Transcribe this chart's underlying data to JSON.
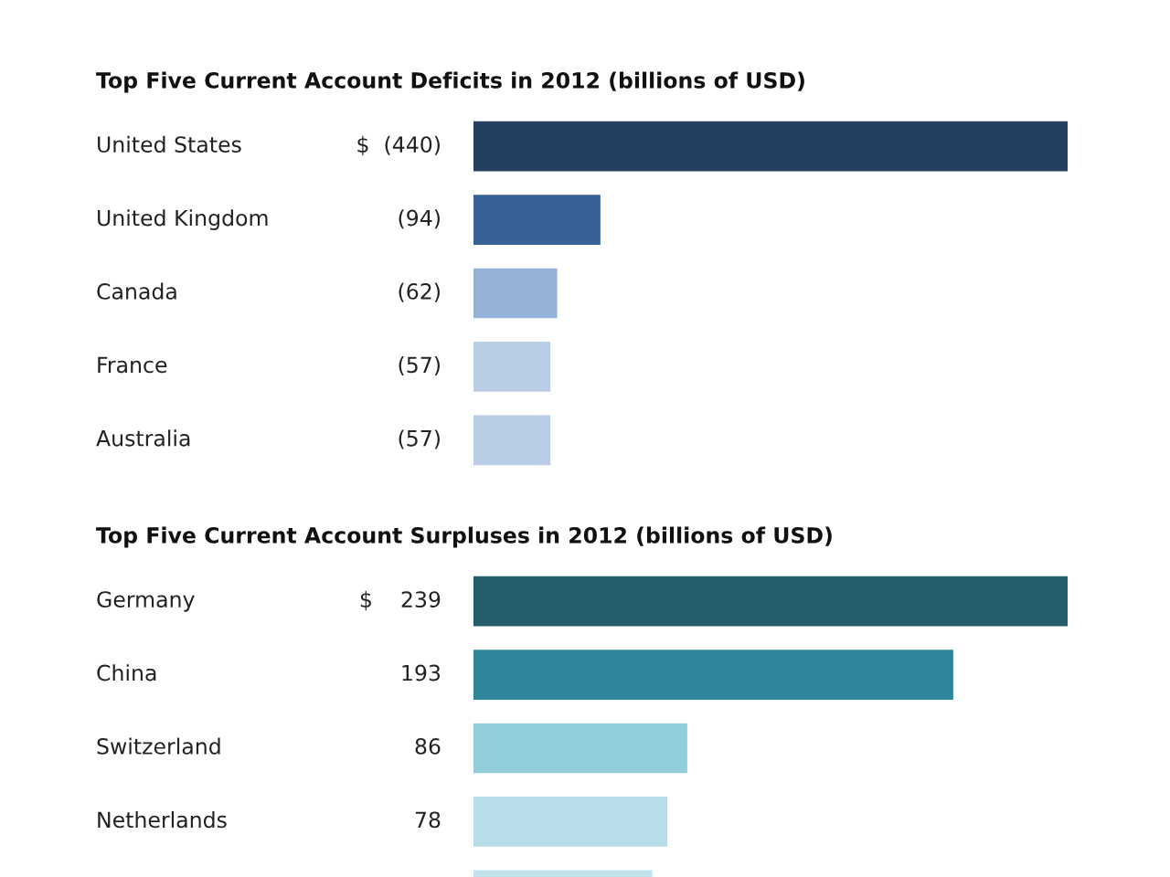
{
  "chart_data": [
    {
      "type": "bar",
      "orientation": "horizontal",
      "title": "Top Five Current Account Deficits in 2012 (billions of USD)",
      "categories": [
        "United States",
        "United Kingdom",
        "Canada",
        "France",
        "Australia"
      ],
      "values": [
        440,
        94,
        62,
        57,
        57
      ],
      "value_labels": [
        "$  (440)",
        "(94)",
        "(62)",
        "(57)",
        "(57)"
      ],
      "colors": [
        "#253f61",
        "#386197",
        "#95b3d7",
        "#b9cde5",
        "#b9cde5"
      ],
      "tick_labels": false
    },
    {
      "type": "bar",
      "orientation": "horizontal",
      "title": "Top Five Current Account Surpluses in 2012 (billions of USD)",
      "categories": [
        "Germany",
        "China",
        "Switzerland",
        "Netherlands",
        null
      ],
      "values": [
        239,
        193,
        86,
        78,
        72
      ],
      "value_labels": [
        "$    239",
        "193",
        "86",
        "78",
        null
      ],
      "colors": [
        "#255e6a",
        "#31869b",
        "#92cddc",
        "#b7dee8",
        "#c2e3eb"
      ],
      "tick_labels": false
    }
  ]
}
